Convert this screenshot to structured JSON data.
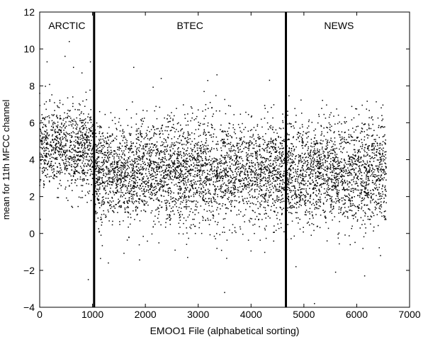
{
  "chart_data": {
    "type": "scatter",
    "title": "",
    "xlabel": "EMOO1 File (alphabetical sorting)",
    "ylabel": "mean for 11th MFCC channel",
    "xlim": [
      0,
      7000
    ],
    "ylim": [
      -4,
      12
    ],
    "xticks": [
      0,
      1000,
      2000,
      3000,
      4000,
      5000,
      6000,
      7000
    ],
    "yticks": [
      -4,
      -2,
      0,
      2,
      4,
      6,
      8,
      10,
      12
    ],
    "xtick_labels": [
      "0",
      "1000",
      "2000",
      "3000",
      "4000",
      "5000",
      "6000",
      "7000"
    ],
    "ytick_labels": [
      "−4",
      "−2",
      "0",
      "2",
      "4",
      "6",
      "8",
      "10",
      "12"
    ],
    "grid": false,
    "marker_color": "#000000",
    "dividers": [
      1030,
      4660
    ],
    "segments": [
      {
        "label": "ARCTIC",
        "x_start": 0,
        "x_end": 1030,
        "mean_y": 4.6,
        "spread_y": 1.1,
        "n_points": 900
      },
      {
        "label": "BTEC",
        "x_start": 1030,
        "x_end": 4660,
        "mean_y": 3.3,
        "spread_y": 1.4,
        "n_points": 3500
      },
      {
        "label": "NEWS",
        "x_start": 4660,
        "x_end": 6560,
        "mean_y": 3.3,
        "spread_y": 1.4,
        "n_points": 1800
      }
    ],
    "outliers": [
      {
        "x": 560,
        "y": 10.4
      },
      {
        "x": 480,
        "y": 9.6
      },
      {
        "x": 140,
        "y": 9.3
      },
      {
        "x": 960,
        "y": 9.3
      },
      {
        "x": 640,
        "y": 9.0
      },
      {
        "x": 800,
        "y": 8.7
      },
      {
        "x": 1780,
        "y": 9.0
      },
      {
        "x": 2300,
        "y": 8.4
      },
      {
        "x": 4350,
        "y": 8.3
      },
      {
        "x": 920,
        "y": -2.5
      },
      {
        "x": 3500,
        "y": -3.2
      },
      {
        "x": 5200,
        "y": -3.8
      },
      {
        "x": 5600,
        "y": -2.1
      },
      {
        "x": 6150,
        "y": -2.3
      },
      {
        "x": 1300,
        "y": -1.6
      },
      {
        "x": 4850,
        "y": -1.8
      },
      {
        "x": 6450,
        "y": -1.2
      },
      {
        "x": 2800,
        "y": -1.3
      }
    ]
  }
}
